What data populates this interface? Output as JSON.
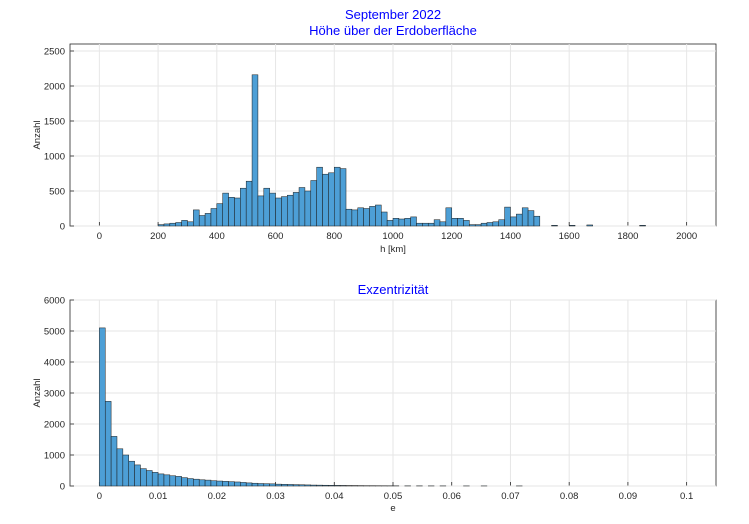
{
  "chart_data": [
    {
      "type": "bar",
      "title": "September 2022",
      "subtitle": "Höhe über der Erdoberfläche",
      "xlabel": "h [km]",
      "ylabel": "Anzahl",
      "xlim": [
        -100,
        2100
      ],
      "ylim": [
        0,
        2600
      ],
      "bin_width": 20,
      "xticks": [
        "0",
        "200",
        "400",
        "600",
        "800",
        "1000",
        "1200",
        "1400",
        "1600",
        "1800",
        "2000"
      ],
      "yticks": [
        "0",
        "500",
        "1000",
        "1500",
        "2000",
        "2500"
      ],
      "grid": true,
      "color": "#4d9fd6",
      "bins": [
        {
          "x": 200,
          "y": 20
        },
        {
          "x": 220,
          "y": 30
        },
        {
          "x": 240,
          "y": 40
        },
        {
          "x": 260,
          "y": 50
        },
        {
          "x": 280,
          "y": 80
        },
        {
          "x": 300,
          "y": 60
        },
        {
          "x": 320,
          "y": 230
        },
        {
          "x": 340,
          "y": 150
        },
        {
          "x": 360,
          "y": 180
        },
        {
          "x": 380,
          "y": 250
        },
        {
          "x": 400,
          "y": 320
        },
        {
          "x": 420,
          "y": 470
        },
        {
          "x": 440,
          "y": 410
        },
        {
          "x": 460,
          "y": 400
        },
        {
          "x": 480,
          "y": 540
        },
        {
          "x": 500,
          "y": 640
        },
        {
          "x": 520,
          "y": 2160
        },
        {
          "x": 540,
          "y": 430
        },
        {
          "x": 560,
          "y": 540
        },
        {
          "x": 580,
          "y": 470
        },
        {
          "x": 600,
          "y": 400
        },
        {
          "x": 620,
          "y": 420
        },
        {
          "x": 640,
          "y": 440
        },
        {
          "x": 660,
          "y": 480
        },
        {
          "x": 680,
          "y": 550
        },
        {
          "x": 700,
          "y": 500
        },
        {
          "x": 720,
          "y": 650
        },
        {
          "x": 740,
          "y": 840
        },
        {
          "x": 760,
          "y": 740
        },
        {
          "x": 780,
          "y": 760
        },
        {
          "x": 800,
          "y": 840
        },
        {
          "x": 820,
          "y": 820
        },
        {
          "x": 840,
          "y": 240
        },
        {
          "x": 860,
          "y": 230
        },
        {
          "x": 880,
          "y": 260
        },
        {
          "x": 900,
          "y": 250
        },
        {
          "x": 920,
          "y": 280
        },
        {
          "x": 940,
          "y": 300
        },
        {
          "x": 960,
          "y": 200
        },
        {
          "x": 980,
          "y": 80
        },
        {
          "x": 1000,
          "y": 110
        },
        {
          "x": 1020,
          "y": 100
        },
        {
          "x": 1040,
          "y": 110
        },
        {
          "x": 1060,
          "y": 130
        },
        {
          "x": 1080,
          "y": 40
        },
        {
          "x": 1100,
          "y": 40
        },
        {
          "x": 1120,
          "y": 40
        },
        {
          "x": 1140,
          "y": 90
        },
        {
          "x": 1160,
          "y": 60
        },
        {
          "x": 1180,
          "y": 260
        },
        {
          "x": 1200,
          "y": 110
        },
        {
          "x": 1220,
          "y": 110
        },
        {
          "x": 1240,
          "y": 80
        },
        {
          "x": 1260,
          "y": 20
        },
        {
          "x": 1280,
          "y": 20
        },
        {
          "x": 1300,
          "y": 40
        },
        {
          "x": 1320,
          "y": 50
        },
        {
          "x": 1340,
          "y": 60
        },
        {
          "x": 1360,
          "y": 90
        },
        {
          "x": 1380,
          "y": 270
        },
        {
          "x": 1400,
          "y": 130
        },
        {
          "x": 1420,
          "y": 170
        },
        {
          "x": 1440,
          "y": 260
        },
        {
          "x": 1460,
          "y": 220
        },
        {
          "x": 1480,
          "y": 140
        },
        {
          "x": 1540,
          "y": 10
        },
        {
          "x": 1600,
          "y": 10
        },
        {
          "x": 1660,
          "y": 15
        },
        {
          "x": 1840,
          "y": 10
        }
      ]
    },
    {
      "type": "bar",
      "title": "Exzentrizität",
      "xlabel": "e",
      "ylabel": "Anzahl",
      "xlim": [
        -0.005,
        0.105
      ],
      "ylim": [
        0,
        6000
      ],
      "bin_width": 0.001,
      "xticks": [
        "0",
        "0.01",
        "0.02",
        "0.03",
        "0.04",
        "0.05",
        "0.06",
        "0.07",
        "0.08",
        "0.09",
        "0.1"
      ],
      "yticks": [
        "0",
        "1000",
        "2000",
        "3000",
        "4000",
        "5000",
        "6000"
      ],
      "grid": true,
      "color": "#4d9fd6",
      "bins": [
        {
          "x": 0.0,
          "y": 5100
        },
        {
          "x": 0.001,
          "y": 2730
        },
        {
          "x": 0.002,
          "y": 1600
        },
        {
          "x": 0.003,
          "y": 1200
        },
        {
          "x": 0.004,
          "y": 1000
        },
        {
          "x": 0.005,
          "y": 800
        },
        {
          "x": 0.006,
          "y": 680
        },
        {
          "x": 0.007,
          "y": 560
        },
        {
          "x": 0.008,
          "y": 500
        },
        {
          "x": 0.009,
          "y": 440
        },
        {
          "x": 0.01,
          "y": 390
        },
        {
          "x": 0.011,
          "y": 360
        },
        {
          "x": 0.012,
          "y": 330
        },
        {
          "x": 0.013,
          "y": 310
        },
        {
          "x": 0.014,
          "y": 270
        },
        {
          "x": 0.015,
          "y": 240
        },
        {
          "x": 0.016,
          "y": 220
        },
        {
          "x": 0.017,
          "y": 200
        },
        {
          "x": 0.018,
          "y": 190
        },
        {
          "x": 0.019,
          "y": 170
        },
        {
          "x": 0.02,
          "y": 160
        },
        {
          "x": 0.021,
          "y": 150
        },
        {
          "x": 0.022,
          "y": 140
        },
        {
          "x": 0.023,
          "y": 130
        },
        {
          "x": 0.024,
          "y": 115
        },
        {
          "x": 0.025,
          "y": 100
        },
        {
          "x": 0.026,
          "y": 90
        },
        {
          "x": 0.027,
          "y": 80
        },
        {
          "x": 0.028,
          "y": 75
        },
        {
          "x": 0.029,
          "y": 70
        },
        {
          "x": 0.03,
          "y": 60
        },
        {
          "x": 0.031,
          "y": 55
        },
        {
          "x": 0.032,
          "y": 50
        },
        {
          "x": 0.033,
          "y": 45
        },
        {
          "x": 0.034,
          "y": 40
        },
        {
          "x": 0.035,
          "y": 35
        },
        {
          "x": 0.036,
          "y": 30
        },
        {
          "x": 0.037,
          "y": 28
        },
        {
          "x": 0.038,
          "y": 25
        },
        {
          "x": 0.039,
          "y": 22
        },
        {
          "x": 0.04,
          "y": 20
        },
        {
          "x": 0.041,
          "y": 18
        },
        {
          "x": 0.042,
          "y": 15
        },
        {
          "x": 0.043,
          "y": 14
        },
        {
          "x": 0.044,
          "y": 12
        },
        {
          "x": 0.045,
          "y": 10
        },
        {
          "x": 0.046,
          "y": 10
        },
        {
          "x": 0.047,
          "y": 9
        },
        {
          "x": 0.048,
          "y": 8
        },
        {
          "x": 0.049,
          "y": 7
        },
        {
          "x": 0.05,
          "y": 6
        },
        {
          "x": 0.052,
          "y": 5
        },
        {
          "x": 0.054,
          "y": 5
        },
        {
          "x": 0.056,
          "y": 4
        },
        {
          "x": 0.058,
          "y": 4
        },
        {
          "x": 0.062,
          "y": 3
        },
        {
          "x": 0.065,
          "y": 3
        },
        {
          "x": 0.071,
          "y": 3
        }
      ]
    }
  ]
}
